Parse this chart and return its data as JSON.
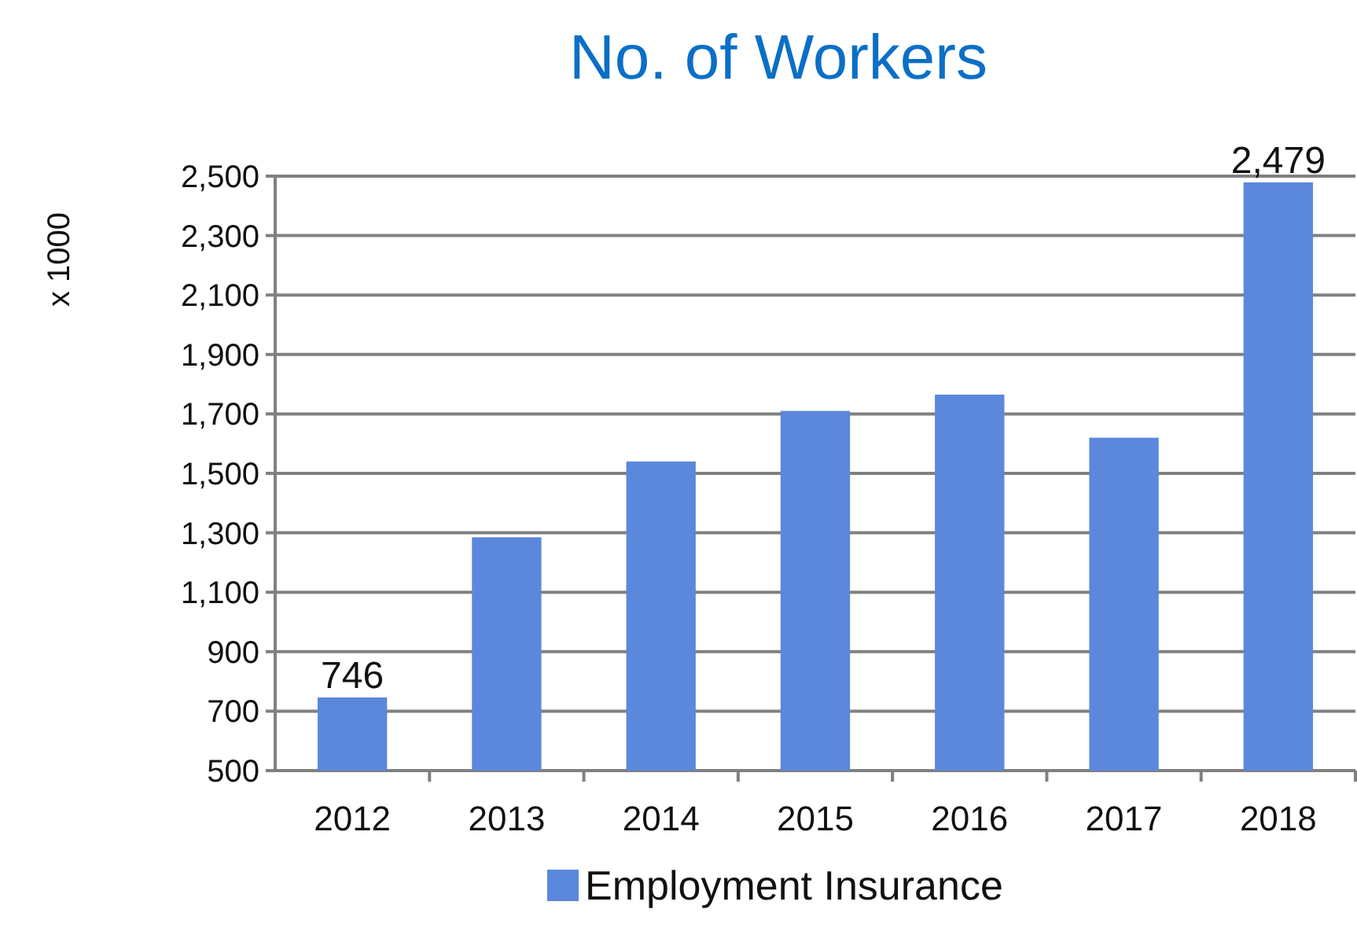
{
  "chart_data": {
    "type": "bar",
    "title": "No. of Workers",
    "ylabel": "x 1000",
    "categories": [
      "2012",
      "2013",
      "2014",
      "2015",
      "2016",
      "2017",
      "2018"
    ],
    "series": [
      {
        "name": "Employment Insurance",
        "color": "#5b87dd",
        "values": [
          746,
          1285,
          1540,
          1710,
          1765,
          1620,
          2479
        ],
        "value_labels": [
          "746",
          null,
          null,
          null,
          null,
          null,
          "2,479"
        ]
      }
    ],
    "ylim": [
      500,
      2500
    ],
    "yticks": [
      {
        "value": 500,
        "label": "500"
      },
      {
        "value": 700,
        "label": "700"
      },
      {
        "value": 900,
        "label": "900"
      },
      {
        "value": 1100,
        "label": "1,100"
      },
      {
        "value": 1300,
        "label": "1,300"
      },
      {
        "value": 1500,
        "label": "1,500"
      },
      {
        "value": 1700,
        "label": "1,700"
      },
      {
        "value": 1900,
        "label": "1,900"
      },
      {
        "value": 2100,
        "label": "2,100"
      },
      {
        "value": 2300,
        "label": "2,300"
      },
      {
        "value": 2500,
        "label": "2,500"
      }
    ],
    "grid": "y",
    "legend": "bottom"
  }
}
